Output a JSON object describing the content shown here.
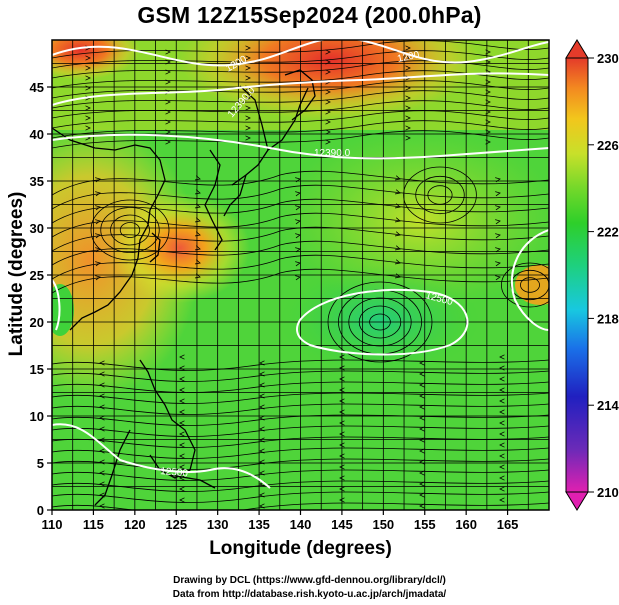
{
  "title": "GSM 12Z15Sep2024 (200.0hPa)",
  "x_axis": {
    "label": "Longitude (degrees)",
    "range": [
      110,
      170
    ],
    "ticks": [
      "110",
      "115",
      "120",
      "125",
      "130",
      "135",
      "140",
      "145",
      "150",
      "155",
      "160",
      "165"
    ]
  },
  "y_axis": {
    "label": "Latitude  (degrees)",
    "range": [
      0,
      50
    ],
    "ticks": [
      "0",
      "5",
      "10",
      "15",
      "20",
      "25",
      "30",
      "35",
      "40",
      "45"
    ]
  },
  "colorbar": {
    "min": 210,
    "max": 230,
    "ticks": [
      "210",
      "214",
      "218",
      "222",
      "226",
      "230"
    ]
  },
  "contour_labels": [
    "1200",
    "1200",
    "12390.0",
    "12390.0",
    "12500",
    "12500"
  ],
  "credits": {
    "line1": "Drawing by DCL (https://www.gfd-dennou.org/library/dcl/)",
    "line2": "Data from http://database.rish.kyoto-u.ac.jp/arch/jmadata/"
  },
  "colors": {
    "warm_max": "#e43b2a",
    "warm": "#f3a21c",
    "neutral": "#d8e02a",
    "cool": "#3fd23a",
    "cold": "#1aa6e6",
    "min": "#e020b0"
  }
}
